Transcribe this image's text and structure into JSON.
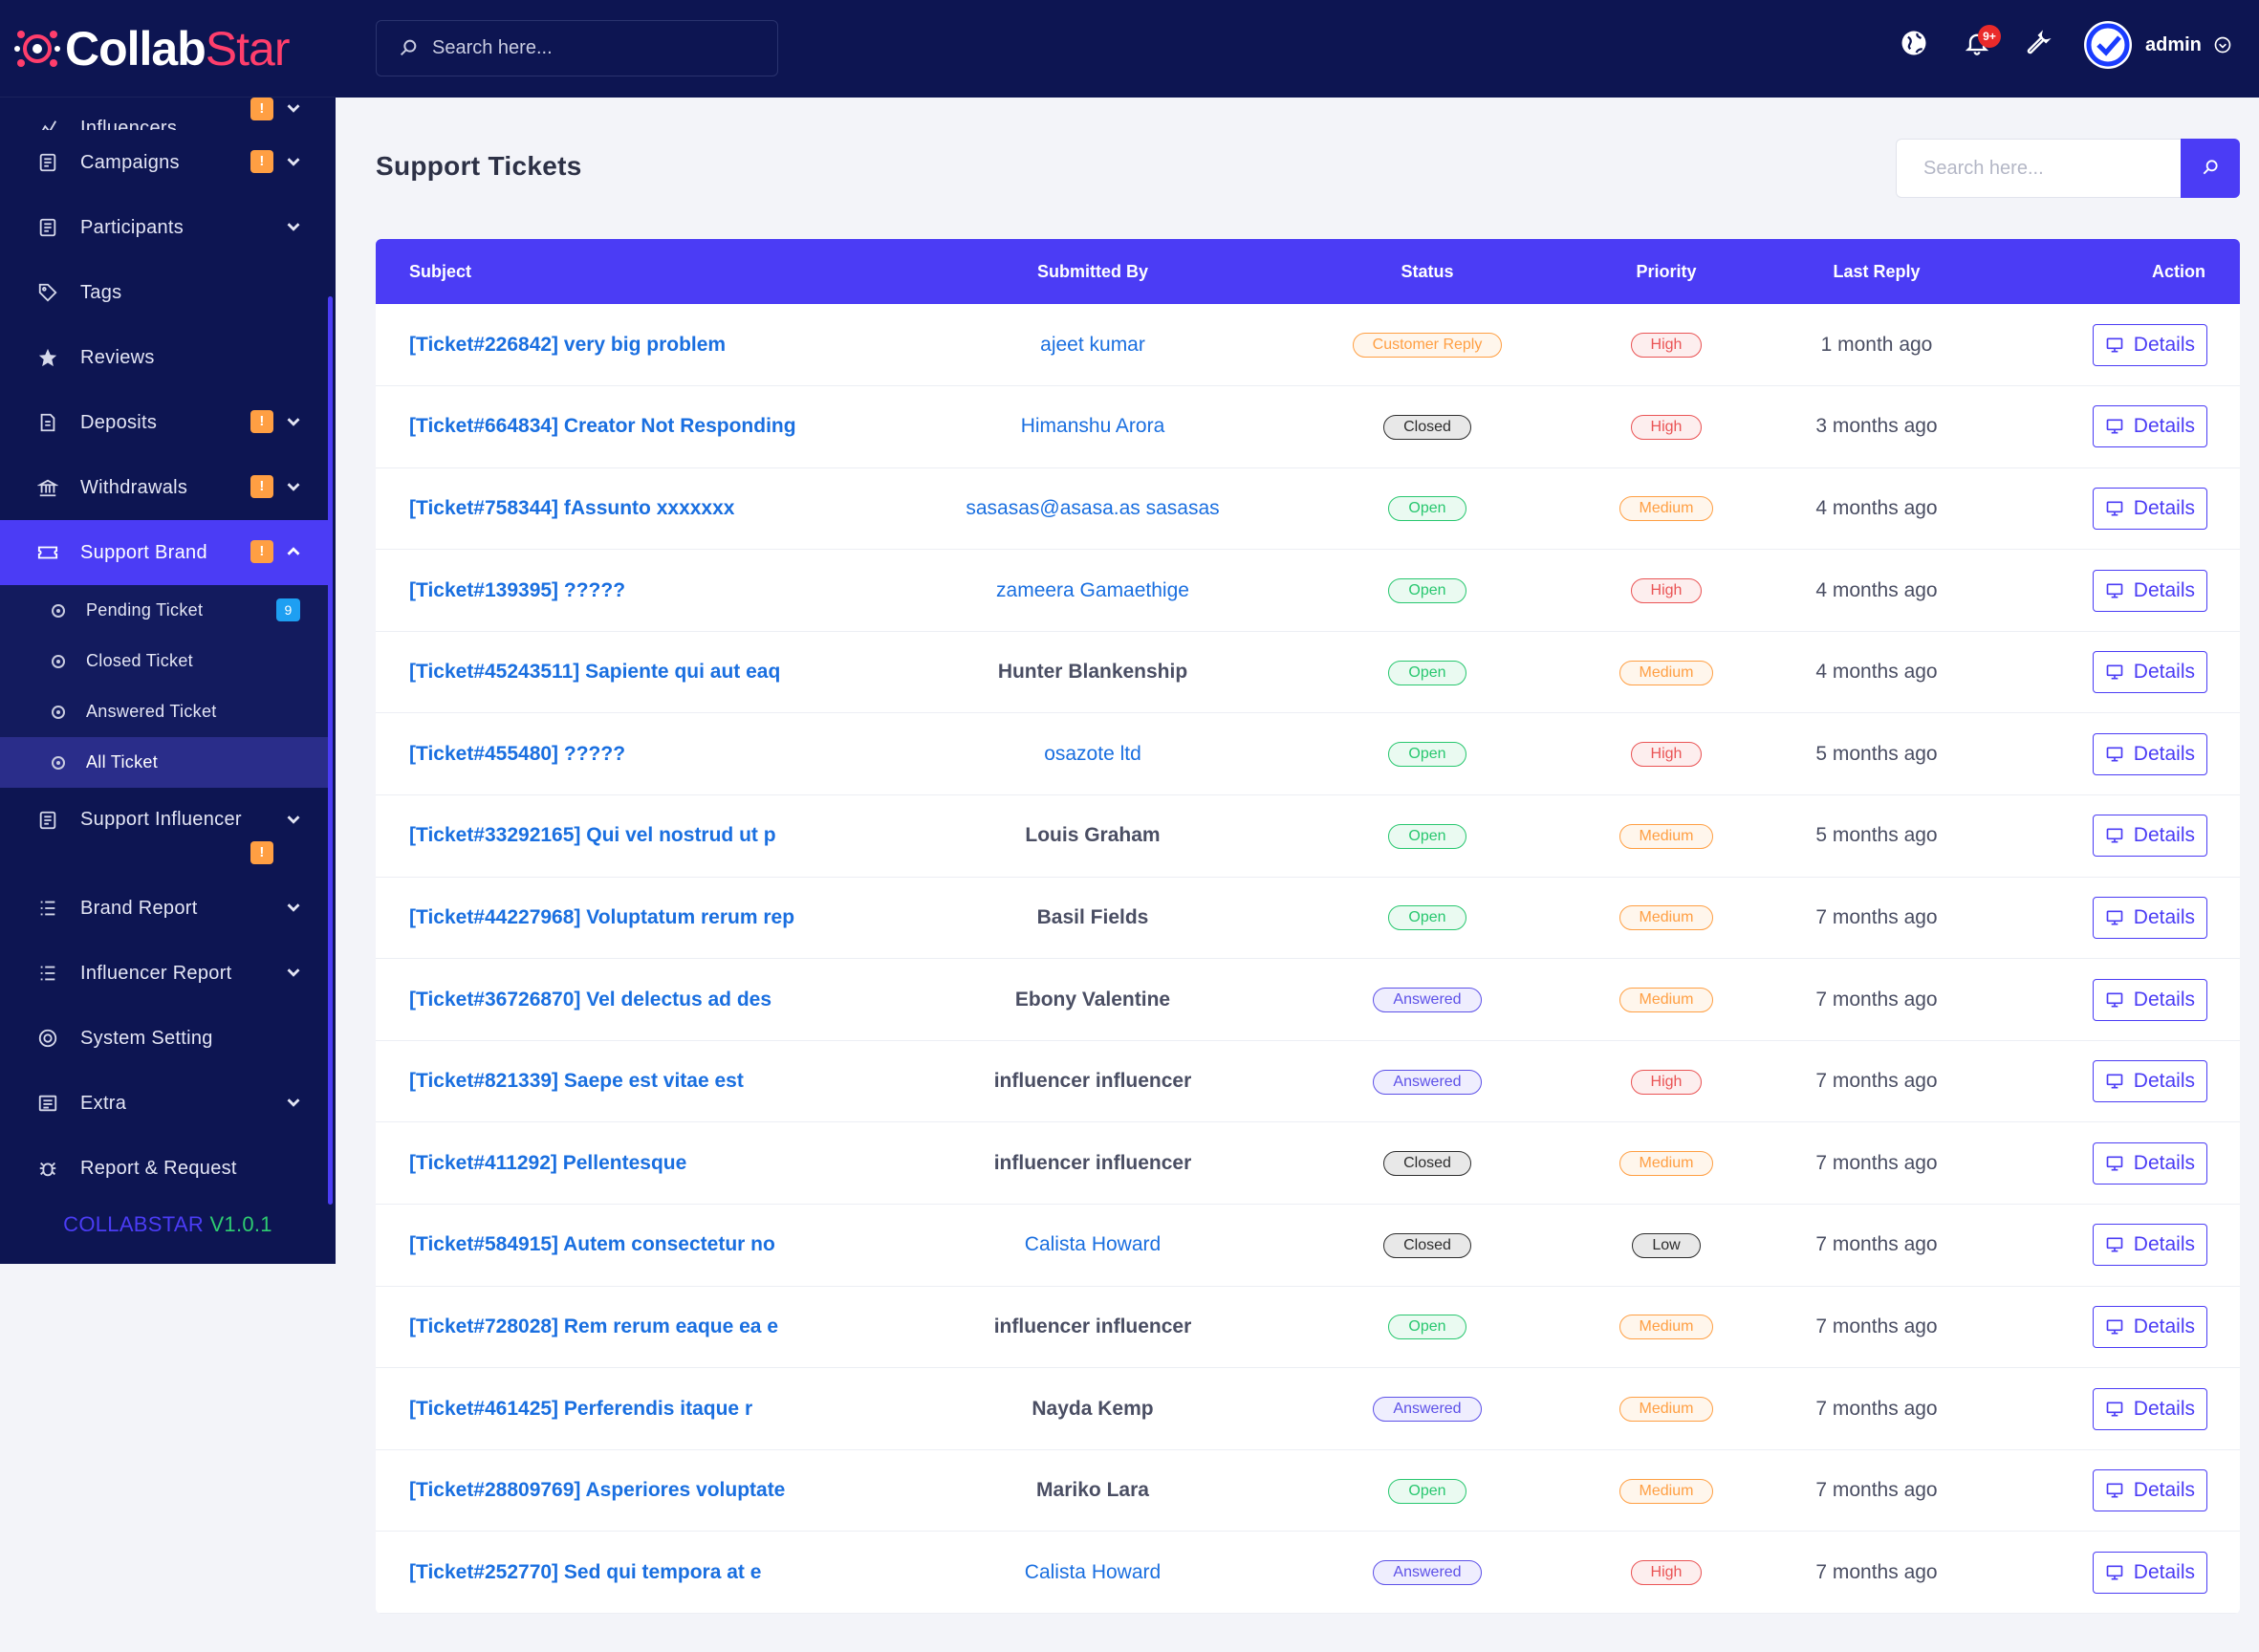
{
  "brand": {
    "part1": "Collab",
    "part2": "Star"
  },
  "topbar": {
    "search_placeholder": "Search here...",
    "notification_count": "9+",
    "user_name": "admin"
  },
  "sidebar": {
    "partial_item": "Influencers",
    "items": [
      {
        "label": "Campaigns",
        "icon": "clipboard-icon",
        "warn": "!"
      },
      {
        "label": "Participants",
        "icon": "clipboard-icon"
      },
      {
        "label": "Tags",
        "icon": "tag-icon"
      },
      {
        "label": "Reviews",
        "icon": "star-icon"
      },
      {
        "label": "Deposits",
        "icon": "deposit-icon",
        "warn": "!"
      },
      {
        "label": "Withdrawals",
        "icon": "bank-icon",
        "warn": "!"
      },
      {
        "label": "Support Brand",
        "icon": "ticket-icon",
        "warn": "!"
      }
    ],
    "sub_items": [
      {
        "label": "Pending Ticket",
        "count": "9"
      },
      {
        "label": "Closed Ticket"
      },
      {
        "label": "Answered Ticket"
      },
      {
        "label": "All Ticket"
      }
    ],
    "items_after": [
      {
        "label": "Support Influencer",
        "warn": "!"
      },
      {
        "label": "Brand Report"
      },
      {
        "label": "Influencer Report"
      },
      {
        "label": "System Setting"
      },
      {
        "label": "Extra"
      },
      {
        "label": "Report & Request"
      }
    ],
    "version_name": "COLLABSTAR",
    "version_number": "V1.0.1"
  },
  "main": {
    "title": "Support Tickets",
    "search_placeholder": "Search here...",
    "columns": [
      "Subject",
      "Submitted By",
      "Status",
      "Priority",
      "Last Reply",
      "Action"
    ],
    "details_label": "Details",
    "tickets": [
      {
        "subject": "[Ticket#226842] very big problem",
        "by": "ajeet kumar",
        "by_link": true,
        "status": "Customer Reply",
        "priority": "High",
        "reply": "1 month ago"
      },
      {
        "subject": "[Ticket#664834] Creator Not Responding",
        "by": "Himanshu Arora",
        "by_link": true,
        "status": "Closed",
        "priority": "High",
        "reply": "3 months ago"
      },
      {
        "subject": "[Ticket#758344] fAssunto xxxxxxx",
        "by": "sasasas@asasa.as sasasas",
        "by_link": true,
        "status": "Open",
        "priority": "Medium",
        "reply": "4 months ago"
      },
      {
        "subject": "[Ticket#139395] ?????",
        "by": "zameera Gamaethige",
        "by_link": true,
        "status": "Open",
        "priority": "High",
        "reply": "4 months ago"
      },
      {
        "subject": "[Ticket#45243511] Sapiente qui aut eaq",
        "by": "Hunter Blankenship",
        "by_link": false,
        "status": "Open",
        "priority": "Medium",
        "reply": "4 months ago"
      },
      {
        "subject": "[Ticket#455480] ?????",
        "by": "osazote ltd",
        "by_link": true,
        "status": "Open",
        "priority": "High",
        "reply": "5 months ago"
      },
      {
        "subject": "[Ticket#33292165] Qui vel nostrud ut p",
        "by": "Louis Graham",
        "by_link": false,
        "status": "Open",
        "priority": "Medium",
        "reply": "5 months ago"
      },
      {
        "subject": "[Ticket#44227968] Voluptatum rerum rep",
        "by": "Basil Fields",
        "by_link": false,
        "status": "Open",
        "priority": "Medium",
        "reply": "7 months ago"
      },
      {
        "subject": "[Ticket#36726870] Vel delectus ad des",
        "by": "Ebony Valentine",
        "by_link": false,
        "status": "Answered",
        "priority": "Medium",
        "reply": "7 months ago"
      },
      {
        "subject": "[Ticket#821339] Saepe est vitae est",
        "by": "influencer influencer",
        "by_link": false,
        "status": "Answered",
        "priority": "High",
        "reply": "7 months ago"
      },
      {
        "subject": "[Ticket#411292] Pellentesque",
        "by": "influencer influencer",
        "by_link": false,
        "status": "Closed",
        "priority": "Medium",
        "reply": "7 months ago"
      },
      {
        "subject": "[Ticket#584915] Autem consectetur no",
        "by": "Calista Howard",
        "by_link": true,
        "status": "Closed",
        "priority": "Low",
        "reply": "7 months ago"
      },
      {
        "subject": "[Ticket#728028] Rem rerum eaque ea e",
        "by": "influencer influencer",
        "by_link": false,
        "status": "Open",
        "priority": "Medium",
        "reply": "7 months ago"
      },
      {
        "subject": "[Ticket#461425] Perferendis itaque r",
        "by": "Nayda Kemp",
        "by_link": false,
        "status": "Answered",
        "priority": "Medium",
        "reply": "7 months ago"
      },
      {
        "subject": "[Ticket#28809769] Asperiores voluptate",
        "by": "Mariko Lara",
        "by_link": false,
        "status": "Open",
        "priority": "Medium",
        "reply": "7 months ago"
      },
      {
        "subject": "[Ticket#252770] Sed qui tempora at e",
        "by": "Calista Howard",
        "by_link": true,
        "status": "Answered",
        "priority": "High",
        "reply": "7 months ago"
      }
    ]
  },
  "colors": {
    "navy": "#0d1552",
    "accent": "#4b3cf5",
    "link": "#1a6fe0",
    "warning": "#ff9f43",
    "success": "#28c76f",
    "danger": "#ea5455"
  }
}
